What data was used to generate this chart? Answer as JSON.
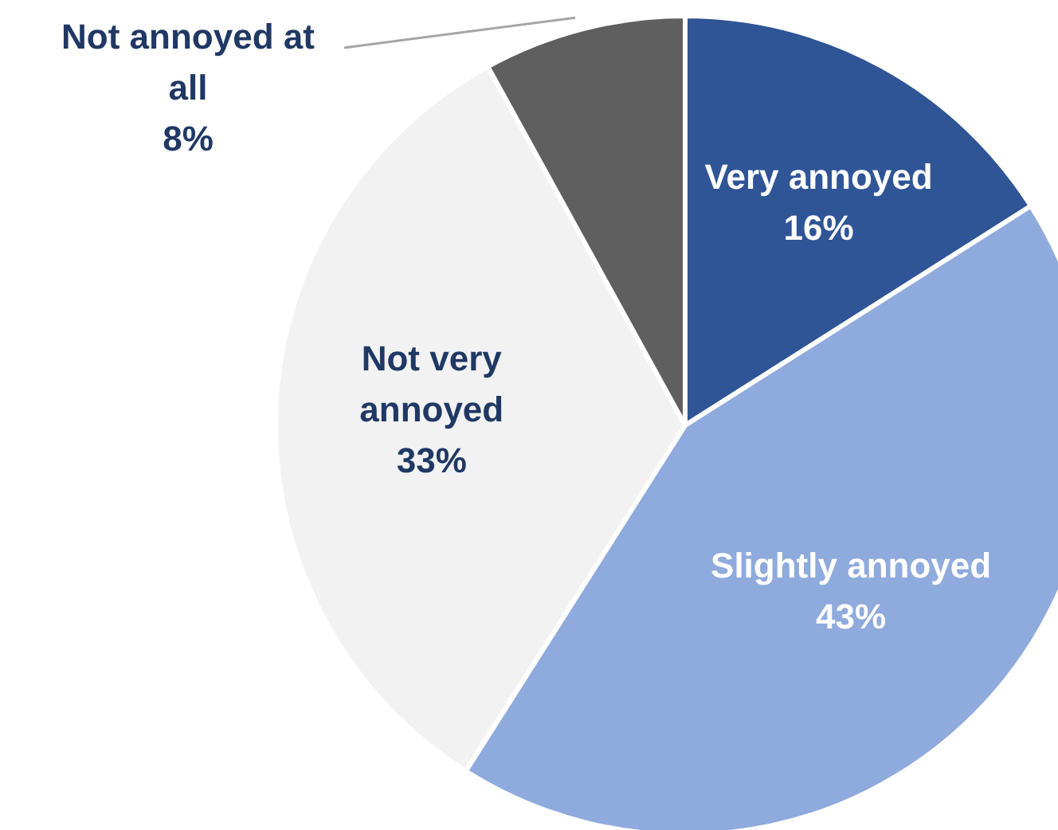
{
  "chart_data": {
    "type": "pie",
    "categories": [
      "Very annoyed",
      "Slightly annoyed",
      "Not very annoyed",
      "Not annoyed at all"
    ],
    "values": [
      16,
      43,
      33,
      8
    ],
    "value_labels": [
      "16%",
      "43%",
      "33%",
      "8%"
    ],
    "colors": [
      "#2f5597",
      "#8faadc",
      "#f2f2f2",
      "#5f5f5f"
    ]
  }
}
